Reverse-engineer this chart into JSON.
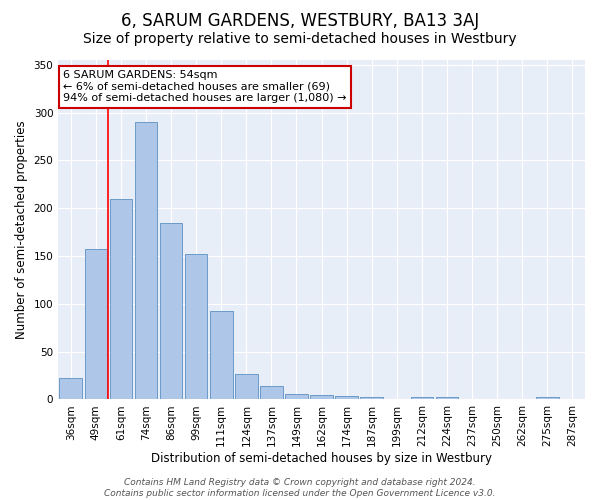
{
  "title": "6, SARUM GARDENS, WESTBURY, BA13 3AJ",
  "subtitle": "Size of property relative to semi-detached houses in Westbury",
  "xlabel": "Distribution of semi-detached houses by size in Westbury",
  "ylabel": "Number of semi-detached properties",
  "categories": [
    "36sqm",
    "49sqm",
    "61sqm",
    "74sqm",
    "86sqm",
    "99sqm",
    "111sqm",
    "124sqm",
    "137sqm",
    "149sqm",
    "162sqm",
    "174sqm",
    "187sqm",
    "199sqm",
    "212sqm",
    "224sqm",
    "237sqm",
    "250sqm",
    "262sqm",
    "275sqm",
    "287sqm"
  ],
  "values": [
    22,
    157,
    210,
    290,
    185,
    152,
    93,
    27,
    14,
    6,
    5,
    4,
    3,
    0,
    3,
    3,
    0,
    0,
    0,
    3,
    0
  ],
  "bar_color": "#aec6e8",
  "bar_edge_color": "#5b8fc3",
  "background_color": "#e8eef8",
  "grid_color": "#ffffff",
  "red_line_x": 1.5,
  "annotation_text": "6 SARUM GARDENS: 54sqm\n← 6% of semi-detached houses are smaller (69)\n94% of semi-detached houses are larger (1,080) →",
  "annotation_box_color": "#ffffff",
  "annotation_box_edge": "#cc0000",
  "ylim": [
    0,
    355
  ],
  "yticks": [
    0,
    50,
    100,
    150,
    200,
    250,
    300,
    350
  ],
  "footer": "Contains HM Land Registry data © Crown copyright and database right 2024.\nContains public sector information licensed under the Open Government Licence v3.0.",
  "title_fontsize": 12,
  "subtitle_fontsize": 10,
  "axis_label_fontsize": 8.5,
  "tick_fontsize": 7.5,
  "annotation_fontsize": 8,
  "footer_fontsize": 6.5
}
